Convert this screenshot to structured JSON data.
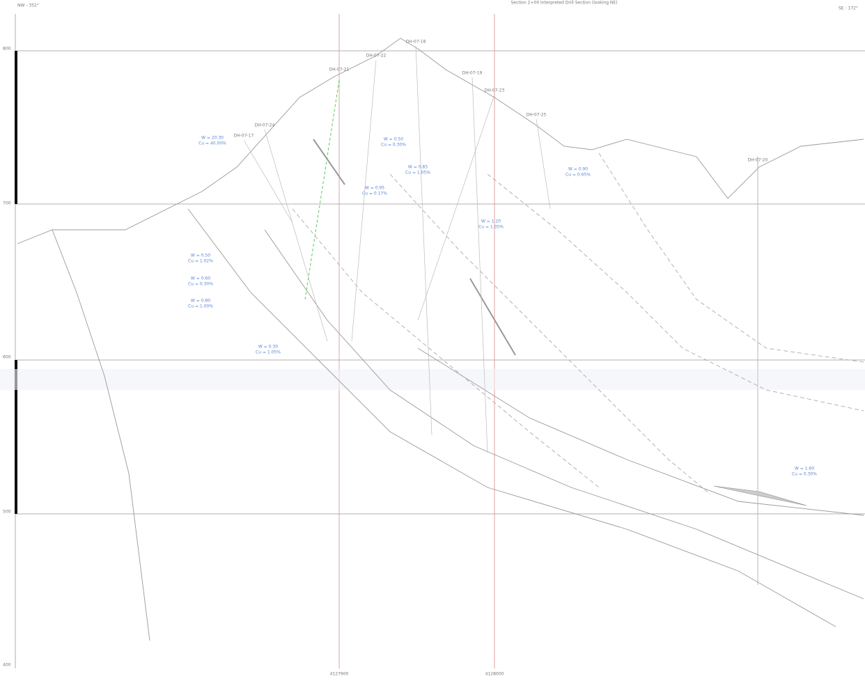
{
  "header": {
    "left": "NW - 352°",
    "title": "Section 2+00 Interpreted Drill Section (looking NE)",
    "right": "SE - 172°"
  },
  "elevations": [
    "800",
    "700",
    "600",
    "500",
    "400"
  ],
  "eastings": [
    "4127900",
    "4128000"
  ],
  "holes": [
    "DH-07-21",
    "DH-07-18",
    "DH-07-19",
    "DH-07-20",
    "DH-07-22",
    "DH-07-24",
    "DH-07-23",
    "DH-07-25",
    "DH-07-17"
  ],
  "assays": [
    [
      "W = 20.30",
      "Cu = 40.00%"
    ],
    [
      "W = 0.50",
      "Cu = 0.30%"
    ],
    [
      "W = 0.95",
      "Cu = 0.17%"
    ],
    [
      "W = 0.85",
      "Cu = 1.05%"
    ],
    [
      "W = 1.20",
      "Cu = 1.05%"
    ],
    [
      "W = 0.90",
      "Cu = 0.65%"
    ],
    [
      "W = 0.50",
      "Cu = 1.02%"
    ],
    [
      "W = 0.60",
      "Cu = 0.30%"
    ],
    [
      "W = 0.80",
      "Cu = 1.00%"
    ],
    [
      "W = 0.30",
      "Cu = 1.05%"
    ],
    [
      "W = 1.60",
      "Cu = 0.30%"
    ]
  ]
}
